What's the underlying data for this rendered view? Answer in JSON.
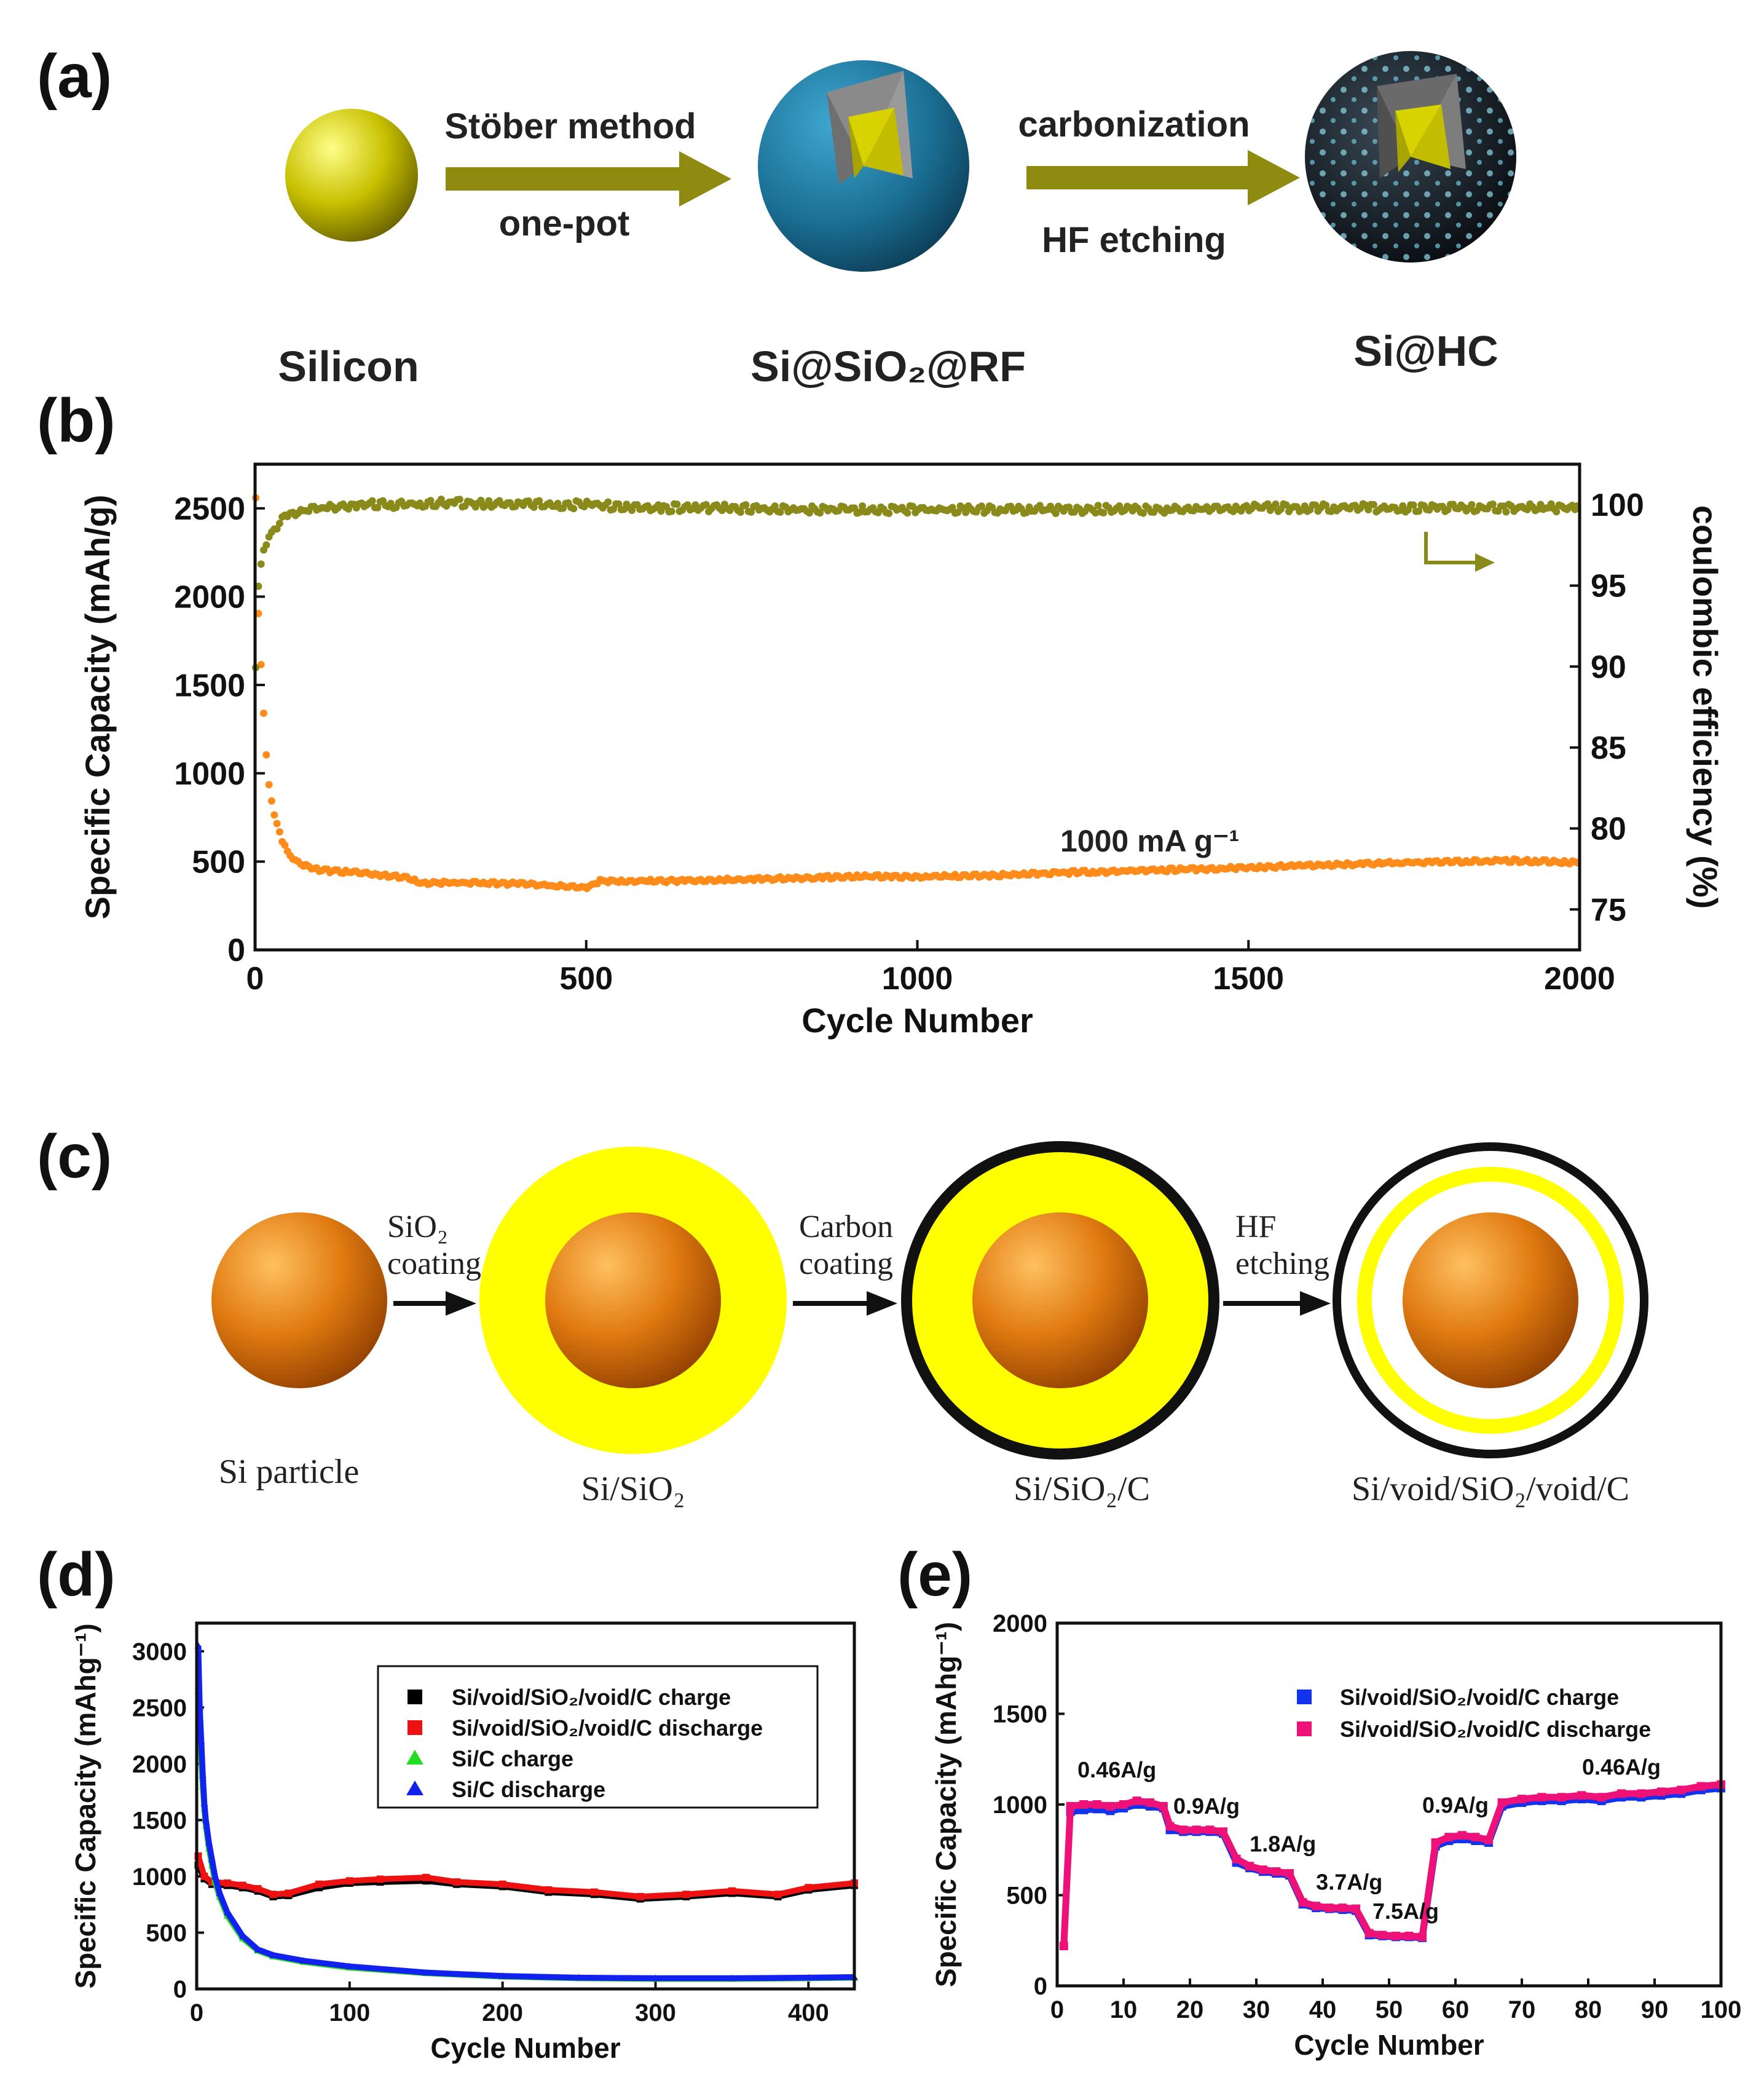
{
  "panel_a": {
    "label": "(a)",
    "step1_top": "Stöber method",
    "step1_bottom": "one-pot",
    "step2_top": "carbonization",
    "step2_bottom": "HF etching",
    "names": [
      "Silicon",
      "Si@SiO₂@RF",
      "Si@HC"
    ]
  },
  "panel_c": {
    "label": "(c)",
    "arrows": [
      {
        "top": "SiO₂",
        "bottom": "coating"
      },
      {
        "top": "Carbon",
        "bottom": "coating"
      },
      {
        "top": "HF",
        "bottom": "etching"
      }
    ],
    "names": [
      "Si particle",
      "Si/SiO₂",
      "Si/SiO₂/C",
      "Si/void/SiO₂/void/C"
    ]
  },
  "colors": {
    "silicon_yellow": "#c8c000",
    "silica_blue": "#1a6e93",
    "si_orange": "#e07a10",
    "shell_yellow": "#ffff00",
    "ce_olive": "#8a8a1a",
    "capacity_orange": "#ff8c1a"
  },
  "chart_data": [
    {
      "panel": "(b)",
      "type": "scatter",
      "xlabel": "Cycle Number",
      "ylabel": "Specific Capacity (mAh/g)",
      "y2label": "coulombic efficiency (%)",
      "xlim": [
        0,
        2000
      ],
      "ylim": [
        0,
        2750
      ],
      "y2lim": [
        72.5,
        102.5
      ],
      "xticks": [
        0,
        500,
        1000,
        1500,
        2000
      ],
      "yticks": [
        0,
        500,
        1000,
        1500,
        2000,
        2500
      ],
      "y2ticks": [
        75,
        80,
        85,
        90,
        95,
        100
      ],
      "annotation": "1000 mA g⁻¹",
      "series": [
        {
          "axis": "left",
          "color": "#ff8c1a",
          "x": [
            1,
            5,
            10,
            15,
            20,
            30,
            40,
            50,
            60,
            80,
            100,
            150,
            200,
            230,
            250,
            300,
            400,
            500,
            510,
            520,
            600,
            700,
            800,
            900,
            1000,
            1100,
            1200,
            1300,
            1400,
            1500,
            1600,
            1700,
            1800,
            1900,
            2000
          ],
          "y": [
            2550,
            1900,
            1550,
            1200,
            950,
            750,
            620,
            550,
            510,
            470,
            450,
            440,
            420,
            410,
            380,
            380,
            375,
            350,
            370,
            390,
            390,
            395,
            405,
            415,
            415,
            420,
            435,
            445,
            455,
            465,
            480,
            490,
            500,
            505,
            495
          ]
        },
        {
          "axis": "right",
          "color": "#8a8a1a",
          "x": [
            1,
            3,
            5,
            10,
            15,
            20,
            30,
            40,
            50,
            60,
            80,
            100,
            150,
            200,
            300,
            400,
            500,
            600,
            700,
            800,
            900,
            1000,
            1100,
            1200,
            1300,
            1400,
            1500,
            1600,
            1700,
            1800,
            1900,
            2000
          ],
          "y": [
            90,
            93,
            95,
            96.5,
            97.5,
            98,
            98.5,
            99,
            99.3,
            99.5,
            99.7,
            99.8,
            100,
            100,
            100.1,
            100,
            100,
            99.8,
            99.8,
            99.7,
            99.7,
            99.7,
            99.7,
            99.7,
            99.7,
            99.7,
            99.8,
            99.8,
            99.8,
            99.8,
            99.8,
            99.8
          ]
        }
      ]
    },
    {
      "panel": "(d)",
      "type": "scatter",
      "xlabel": "Cycle Number",
      "ylabel": "Specific Capacity (mAhg⁻¹)",
      "xlim": [
        0,
        430
      ],
      "ylim": [
        0,
        3250
      ],
      "xticks": [
        0,
        100,
        200,
        300,
        400
      ],
      "yticks": [
        0,
        500,
        1000,
        1500,
        2000,
        2500,
        3000
      ],
      "series": [
        {
          "name": "Si/void/SiO₂/void/C charge",
          "marker": "square",
          "color": "#000000",
          "x": [
            1,
            5,
            10,
            20,
            30,
            40,
            50,
            60,
            80,
            100,
            120,
            150,
            170,
            200,
            230,
            260,
            290,
            320,
            350,
            380,
            400,
            430
          ],
          "y": [
            1100,
            980,
            930,
            920,
            900,
            870,
            820,
            830,
            900,
            940,
            950,
            960,
            930,
            910,
            860,
            840,
            800,
            820,
            850,
            820,
            880,
            920
          ]
        },
        {
          "name": "Si/void/SiO₂/void/C discharge",
          "marker": "square",
          "color": "#ee1111",
          "x": [
            1,
            5,
            10,
            20,
            30,
            40,
            50,
            60,
            80,
            100,
            120,
            150,
            170,
            200,
            230,
            260,
            290,
            320,
            350,
            380,
            400,
            430
          ],
          "y": [
            1180,
            1000,
            950,
            940,
            920,
            890,
            840,
            850,
            930,
            960,
            975,
            990,
            950,
            930,
            880,
            860,
            820,
            840,
            870,
            840,
            900,
            940
          ]
        },
        {
          "name": "Si/C charge",
          "marker": "triangle",
          "color": "#22dd22",
          "x": [
            1,
            2,
            3,
            4,
            5,
            6,
            8,
            10,
            12,
            15,
            20,
            30,
            40,
            50,
            70,
            100,
            150,
            200,
            250,
            300,
            350,
            400,
            430
          ],
          "y": [
            2650,
            2300,
            2050,
            1800,
            1600,
            1450,
            1250,
            1100,
            950,
            820,
            650,
            450,
            340,
            290,
            240,
            190,
            140,
            110,
            95,
            90,
            90,
            95,
            100
          ]
        },
        {
          "name": "Si/C discharge",
          "marker": "triangle",
          "color": "#1122ee",
          "x": [
            1,
            2,
            3,
            4,
            5,
            6,
            8,
            10,
            12,
            15,
            20,
            30,
            40,
            50,
            70,
            100,
            150,
            200,
            250,
            300,
            350,
            400,
            430
          ],
          "y": [
            3050,
            2500,
            2200,
            1900,
            1650,
            1500,
            1300,
            1150,
            1000,
            850,
            680,
            470,
            350,
            300,
            250,
            200,
            145,
            115,
            100,
            95,
            95,
            100,
            105
          ]
        }
      ]
    },
    {
      "panel": "(e)",
      "type": "scatter",
      "xlabel": "Cycle Number",
      "ylabel": "Specific Capacity (mAhg⁻¹)",
      "xlim": [
        0,
        100
      ],
      "ylim": [
        0,
        2000
      ],
      "xticks": [
        0,
        10,
        20,
        30,
        40,
        50,
        60,
        70,
        80,
        90,
        100
      ],
      "yticks": [
        0,
        500,
        1000,
        1500,
        2000
      ],
      "annotations": [
        {
          "text": "0.46A/g",
          "x": 9,
          "y": 1150
        },
        {
          "text": "0.9A/g",
          "x": 22.5,
          "y": 950
        },
        {
          "text": "1.8A/g",
          "x": 34,
          "y": 740
        },
        {
          "text": "3.7A/g",
          "x": 44,
          "y": 530
        },
        {
          "text": "7.5A/g",
          "x": 52.5,
          "y": 370
        },
        {
          "text": "0.9A/g",
          "x": 60,
          "y": 955
        },
        {
          "text": "0.46A/g",
          "x": 85,
          "y": 1165
        }
      ],
      "series": [
        {
          "name": "Si/void/SiO₂/void/C charge",
          "marker": "square",
          "color": "#1133ee",
          "x": [
            2,
            4,
            6,
            8,
            10,
            12,
            14,
            16,
            17,
            19,
            21,
            23,
            25,
            27,
            29,
            31,
            33,
            35,
            37,
            39,
            41,
            43,
            45,
            47,
            49,
            51,
            53,
            55,
            57,
            59,
            61,
            63,
            65,
            67,
            70,
            73,
            76,
            79,
            82,
            85,
            88,
            91,
            94,
            97,
            100
          ],
          "y": [
            960,
            970,
            975,
            965,
            980,
            1000,
            990,
            980,
            860,
            850,
            850,
            850,
            840,
            680,
            650,
            630,
            620,
            610,
            450,
            430,
            425,
            420,
            415,
            280,
            275,
            270,
            270,
            265,
            770,
            800,
            810,
            800,
            790,
            990,
            1010,
            1020,
            1020,
            1030,
            1020,
            1040,
            1040,
            1050,
            1060,
            1080,
            1090
          ]
        },
        {
          "name": "Si/void/SiO₂/void/C discharge",
          "marker": "square",
          "color": "#ee1177",
          "x": [
            1,
            2,
            4,
            6,
            8,
            10,
            12,
            14,
            16,
            17,
            19,
            21,
            23,
            25,
            27,
            29,
            31,
            33,
            35,
            37,
            39,
            41,
            43,
            45,
            47,
            49,
            51,
            53,
            55,
            57,
            59,
            61,
            63,
            65,
            67,
            70,
            73,
            76,
            79,
            82,
            85,
            88,
            91,
            94,
            97,
            100
          ],
          "y": [
            220,
            990,
            1000,
            1000,
            990,
            1000,
            1020,
            1010,
            990,
            880,
            860,
            860,
            860,
            850,
            700,
            660,
            640,
            630,
            620,
            460,
            440,
            430,
            430,
            425,
            290,
            280,
            275,
            275,
            270,
            790,
            820,
            830,
            820,
            805,
            1010,
            1030,
            1040,
            1040,
            1050,
            1040,
            1060,
            1060,
            1070,
            1080,
            1100,
            1110
          ]
        }
      ]
    }
  ]
}
